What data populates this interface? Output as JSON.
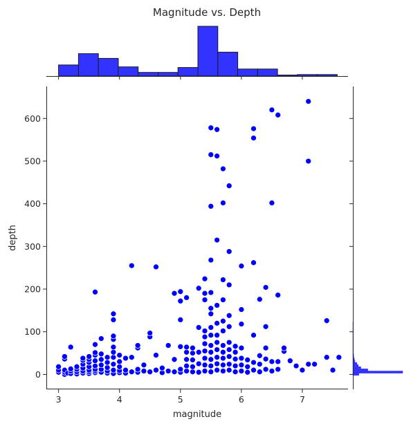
{
  "chart_data": {
    "type": "scatter",
    "title": "Magnitude vs. Depth",
    "xlabel": "magnitude",
    "ylabel": "depth",
    "xlim": [
      2.8,
      7.75
    ],
    "ylim": [
      -35,
      675
    ],
    "xticks": [
      3,
      4,
      5,
      6,
      7
    ],
    "yticks": [
      0,
      100,
      200,
      300,
      400,
      500,
      600
    ],
    "point_color": "#0000ff",
    "hist_color": "#3333ff",
    "points": [
      [
        3.0,
        5
      ],
      [
        3.0,
        10
      ],
      [
        3.0,
        18
      ],
      [
        3.1,
        0
      ],
      [
        3.1,
        5
      ],
      [
        3.1,
        10
      ],
      [
        3.1,
        36
      ],
      [
        3.1,
        42
      ],
      [
        3.15,
        3
      ],
      [
        3.2,
        2
      ],
      [
        3.2,
        8
      ],
      [
        3.2,
        13
      ],
      [
        3.2,
        64
      ],
      [
        3.3,
        1
      ],
      [
        3.3,
        6
      ],
      [
        3.3,
        12
      ],
      [
        3.3,
        18
      ],
      [
        3.4,
        3
      ],
      [
        3.4,
        8
      ],
      [
        3.4,
        15
      ],
      [
        3.4,
        24
      ],
      [
        3.4,
        33
      ],
      [
        3.4,
        38
      ],
      [
        3.5,
        2
      ],
      [
        3.5,
        6
      ],
      [
        3.5,
        10
      ],
      [
        3.5,
        18
      ],
      [
        3.5,
        28
      ],
      [
        3.5,
        35
      ],
      [
        3.5,
        42
      ],
      [
        3.6,
        4
      ],
      [
        3.6,
        8
      ],
      [
        3.6,
        12
      ],
      [
        3.6,
        20
      ],
      [
        3.6,
        32
      ],
      [
        3.6,
        45
      ],
      [
        3.6,
        51
      ],
      [
        3.6,
        70
      ],
      [
        3.6,
        193
      ],
      [
        3.7,
        5
      ],
      [
        3.7,
        12
      ],
      [
        3.7,
        22
      ],
      [
        3.7,
        35
      ],
      [
        3.7,
        48
      ],
      [
        3.7,
        84
      ],
      [
        3.8,
        3
      ],
      [
        3.8,
        8
      ],
      [
        3.8,
        16
      ],
      [
        3.8,
        28
      ],
      [
        3.8,
        40
      ],
      [
        3.9,
        2
      ],
      [
        3.9,
        10
      ],
      [
        3.9,
        24
      ],
      [
        3.9,
        40
      ],
      [
        3.9,
        52
      ],
      [
        3.9,
        64
      ],
      [
        3.9,
        82
      ],
      [
        3.9,
        90
      ],
      [
        3.9,
        128
      ],
      [
        3.9,
        142
      ],
      [
        4.0,
        4
      ],
      [
        4.0,
        9
      ],
      [
        4.0,
        18
      ],
      [
        4.0,
        30
      ],
      [
        4.0,
        45
      ],
      [
        4.1,
        3
      ],
      [
        4.1,
        10
      ],
      [
        4.1,
        38
      ],
      [
        4.2,
        6
      ],
      [
        4.2,
        40
      ],
      [
        4.2,
        255
      ],
      [
        4.3,
        5
      ],
      [
        4.3,
        12
      ],
      [
        4.3,
        62
      ],
      [
        4.3,
        68
      ],
      [
        4.4,
        8
      ],
      [
        4.4,
        22
      ],
      [
        4.5,
        6
      ],
      [
        4.5,
        88
      ],
      [
        4.5,
        97
      ],
      [
        4.6,
        10
      ],
      [
        4.6,
        45
      ],
      [
        4.6,
        252
      ],
      [
        4.7,
        4
      ],
      [
        4.7,
        15
      ],
      [
        4.8,
        8
      ],
      [
        4.8,
        68
      ],
      [
        4.9,
        6
      ],
      [
        4.9,
        35
      ],
      [
        4.9,
        190
      ],
      [
        5.0,
        5
      ],
      [
        5.0,
        12
      ],
      [
        5.0,
        65
      ],
      [
        5.0,
        128
      ],
      [
        5.0,
        172
      ],
      [
        5.0,
        194
      ],
      [
        5.1,
        8
      ],
      [
        5.1,
        20
      ],
      [
        5.1,
        35
      ],
      [
        5.1,
        52
      ],
      [
        5.1,
        64
      ],
      [
        5.1,
        180
      ],
      [
        5.2,
        6
      ],
      [
        5.2,
        18
      ],
      [
        5.2,
        34
      ],
      [
        5.2,
        50
      ],
      [
        5.2,
        62
      ],
      [
        5.3,
        5
      ],
      [
        5.3,
        25
      ],
      [
        5.3,
        52
      ],
      [
        5.3,
        110
      ],
      [
        5.3,
        202
      ],
      [
        5.4,
        8
      ],
      [
        5.4,
        22
      ],
      [
        5.4,
        38
      ],
      [
        5.4,
        55
      ],
      [
        5.4,
        72
      ],
      [
        5.4,
        88
      ],
      [
        5.4,
        102
      ],
      [
        5.4,
        175
      ],
      [
        5.4,
        190
      ],
      [
        5.4,
        224
      ],
      [
        5.5,
        6
      ],
      [
        5.5,
        20
      ],
      [
        5.5,
        35
      ],
      [
        5.5,
        52
      ],
      [
        5.5,
        68
      ],
      [
        5.5,
        92
      ],
      [
        5.5,
        110
      ],
      [
        5.5,
        142
      ],
      [
        5.5,
        155
      ],
      [
        5.5,
        192
      ],
      [
        5.5,
        268
      ],
      [
        5.5,
        394
      ],
      [
        5.5,
        515
      ],
      [
        5.5,
        578
      ],
      [
        5.6,
        10
      ],
      [
        5.6,
        25
      ],
      [
        5.6,
        40
      ],
      [
        5.6,
        58
      ],
      [
        5.6,
        75
      ],
      [
        5.6,
        92
      ],
      [
        5.6,
        120
      ],
      [
        5.6,
        162
      ],
      [
        5.6,
        315
      ],
      [
        5.6,
        512
      ],
      [
        5.6,
        574
      ],
      [
        5.7,
        8
      ],
      [
        5.7,
        22
      ],
      [
        5.7,
        38
      ],
      [
        5.7,
        52
      ],
      [
        5.7,
        68
      ],
      [
        5.7,
        102
      ],
      [
        5.7,
        125
      ],
      [
        5.7,
        175
      ],
      [
        5.7,
        222
      ],
      [
        5.7,
        402
      ],
      [
        5.7,
        482
      ],
      [
        5.8,
        10
      ],
      [
        5.8,
        24
      ],
      [
        5.8,
        42
      ],
      [
        5.8,
        58
      ],
      [
        5.8,
        75
      ],
      [
        5.8,
        112
      ],
      [
        5.8,
        138
      ],
      [
        5.8,
        210
      ],
      [
        5.8,
        288
      ],
      [
        5.8,
        442
      ],
      [
        5.9,
        6
      ],
      [
        5.9,
        20
      ],
      [
        5.9,
        36
      ],
      [
        5.9,
        52
      ],
      [
        5.9,
        66
      ],
      [
        6.0,
        8
      ],
      [
        6.0,
        22
      ],
      [
        6.0,
        38
      ],
      [
        6.0,
        62
      ],
      [
        6.0,
        118
      ],
      [
        6.0,
        152
      ],
      [
        6.0,
        254
      ],
      [
        6.1,
        5
      ],
      [
        6.1,
        18
      ],
      [
        6.1,
        34
      ],
      [
        6.2,
        10
      ],
      [
        6.2,
        28
      ],
      [
        6.2,
        92
      ],
      [
        6.2,
        262
      ],
      [
        6.2,
        554
      ],
      [
        6.2,
        576
      ],
      [
        6.3,
        6
      ],
      [
        6.3,
        24
      ],
      [
        6.3,
        44
      ],
      [
        6.3,
        176
      ],
      [
        6.4,
        12
      ],
      [
        6.4,
        36
      ],
      [
        6.4,
        62
      ],
      [
        6.4,
        112
      ],
      [
        6.4,
        204
      ],
      [
        6.5,
        8
      ],
      [
        6.5,
        30
      ],
      [
        6.5,
        402
      ],
      [
        6.5,
        620
      ],
      [
        6.6,
        12
      ],
      [
        6.6,
        30
      ],
      [
        6.6,
        186
      ],
      [
        6.6,
        608
      ],
      [
        6.7,
        54
      ],
      [
        6.7,
        62
      ],
      [
        6.8,
        32
      ],
      [
        6.9,
        20
      ],
      [
        7.0,
        10
      ],
      [
        7.1,
        24
      ],
      [
        7.1,
        500
      ],
      [
        7.1,
        640
      ],
      [
        7.2,
        24
      ],
      [
        7.4,
        40
      ],
      [
        7.4,
        126
      ],
      [
        7.5,
        10
      ],
      [
        7.6,
        40
      ]
    ],
    "top_hist": {
      "bin_start": 3.0,
      "bin_width": 0.3266,
      "counts": [
        52,
        105,
        83,
        43,
        17,
        17,
        40,
        233,
        112,
        33,
        33,
        5,
        7,
        7
      ]
    },
    "side_hist": {
      "bin_start": -2,
      "bin_width": 5,
      "counts": [
        120,
        1000,
        300,
        160,
        110,
        80,
        40,
        30,
        20,
        15,
        10,
        8,
        6,
        4,
        4,
        3,
        3,
        2,
        2,
        2,
        2,
        1,
        1,
        1,
        1
      ]
    }
  }
}
